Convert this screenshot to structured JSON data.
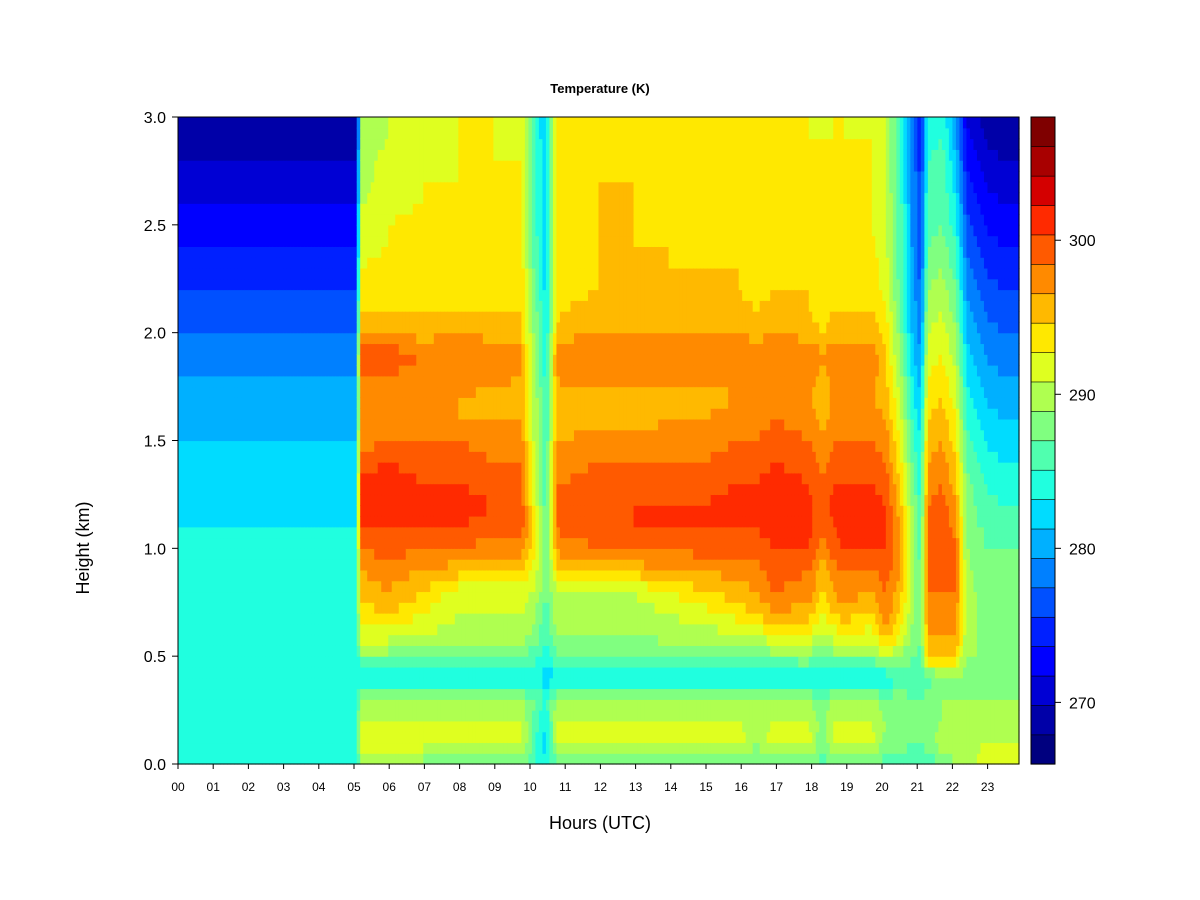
{
  "chart_data": {
    "type": "heatmap",
    "title": "Temperature (K)",
    "xlabel": "Hours (UTC)",
    "ylabel": "Height (km)",
    "x_ticks": [
      "00",
      "01",
      "02",
      "03",
      "04",
      "05",
      "06",
      "07",
      "08",
      "09",
      "10",
      "11",
      "12",
      "13",
      "14",
      "15",
      "16",
      "17",
      "18",
      "19",
      "20",
      "21",
      "22",
      "23"
    ],
    "y_ticks": [
      "0.0",
      "0.5",
      "1.0",
      "1.5",
      "2.0",
      "2.5",
      "3.0"
    ],
    "xlim": [
      0,
      24
    ],
    "ylim": [
      0,
      3
    ],
    "colorbar": {
      "min": 266,
      "max": 308,
      "step": 2,
      "tick_values": [
        270,
        280,
        290,
        300
      ],
      "tick_labels": [
        "270",
        "280",
        "290",
        "300"
      ],
      "colors": [
        "#00007f",
        "#0000a8",
        "#0000d4",
        "#0000ff",
        "#0020ff",
        "#0050ff",
        "#0080ff",
        "#00b0ff",
        "#00dcff",
        "#20ffdf",
        "#50ffaf",
        "#80ff80",
        "#afff50",
        "#dfff20",
        "#ffe800",
        "#ffb900",
        "#ff8a00",
        "#ff5a00",
        "#ff2a00",
        "#d40000",
        "#a80000",
        "#7f0000"
      ]
    },
    "legend": "right",
    "grid": false,
    "heights_km": [
      0.0,
      0.1,
      0.2,
      0.3,
      0.4,
      0.5,
      0.6,
      0.7,
      0.8,
      0.9,
      1.0,
      1.1,
      1.2,
      1.3,
      1.4,
      1.5,
      1.6,
      1.7,
      1.8,
      1.9,
      2.0,
      2.1,
      2.2,
      2.3,
      2.4,
      2.5,
      2.6,
      2.7,
      2.8,
      2.9,
      3.0
    ],
    "profile_hours": [
      0,
      5.1,
      5.2,
      6,
      7,
      8,
      9,
      9.8,
      10.2,
      10.5,
      10.8,
      11,
      12,
      13,
      14,
      15,
      16,
      16.5,
      17,
      18,
      18.4,
      18.7,
      19,
      19.8,
      20.2,
      20.6,
      21,
      21.2,
      21.4,
      21.8,
      22.2,
      22.5,
      22.8,
      23,
      23.5,
      23.85
    ],
    "temperature_profiles_K": [
      [
        285,
        286,
        285,
        285,
        284,
        284,
        285,
        285,
        285,
        284,
        284,
        284,
        283,
        283,
        282,
        282,
        281,
        281,
        280,
        279,
        278,
        277,
        276,
        275,
        274,
        273,
        272,
        271,
        270,
        269,
        268
      ],
      [
        285,
        286,
        285,
        285,
        284,
        284,
        285,
        285,
        285,
        284,
        284,
        284,
        283,
        283,
        282,
        282,
        281,
        281,
        280,
        279,
        278,
        277,
        276,
        275,
        274,
        273,
        272,
        271,
        270,
        269,
        268
      ],
      [
        289,
        293,
        292,
        290,
        283,
        289,
        293,
        295,
        297,
        298,
        300,
        302,
        303,
        303,
        301,
        299,
        298,
        298,
        300,
        301,
        298,
        296,
        295,
        294,
        293,
        292,
        292,
        291,
        291,
        290,
        290
      ],
      [
        289,
        293,
        292,
        290,
        283,
        289,
        293,
        296,
        298,
        299,
        301,
        302,
        303,
        303,
        302,
        300,
        298,
        298,
        300,
        301,
        298,
        296,
        295,
        295,
        294,
        294,
        293,
        293,
        293,
        292,
        292
      ],
      [
        289,
        293,
        292,
        290,
        283,
        289,
        292,
        294,
        296,
        298,
        300,
        302,
        303,
        302,
        301,
        300,
        298,
        298,
        299,
        300,
        297,
        296,
        295,
        295,
        295,
        295,
        294,
        294,
        293,
        293,
        293
      ],
      [
        288,
        293,
        292,
        290,
        283,
        288,
        291,
        292,
        293,
        297,
        300,
        302,
        303,
        302,
        301,
        300,
        298,
        298,
        300,
        300,
        298,
        296,
        295,
        295,
        295,
        295,
        295,
        294,
        294,
        294,
        294
      ],
      [
        288,
        293,
        292,
        290,
        283,
        288,
        291,
        292,
        293,
        296,
        299,
        301,
        302,
        301,
        300,
        299,
        298,
        297,
        299,
        300,
        297,
        296,
        295,
        295,
        295,
        295,
        295,
        295,
        294,
        294,
        294
      ],
      [
        288,
        293,
        292,
        290,
        283,
        288,
        291,
        292,
        293,
        296,
        299,
        301,
        301,
        300,
        300,
        299,
        298,
        297,
        298,
        299,
        296,
        296,
        295,
        295,
        294,
        294,
        294,
        294,
        294,
        293,
        293
      ],
      [
        286,
        286,
        287,
        288,
        284,
        287,
        289,
        290,
        292,
        293,
        294,
        294,
        293,
        292,
        292,
        291,
        291,
        291,
        290,
        290,
        289,
        289,
        288,
        287,
        287,
        286,
        286,
        286,
        286,
        286,
        285
      ],
      [
        284,
        283,
        284,
        286,
        283,
        285,
        286,
        287,
        288,
        288,
        288,
        288,
        287,
        287,
        287,
        286,
        286,
        286,
        285,
        285,
        284,
        284,
        283,
        283,
        283,
        282,
        282,
        282,
        282,
        282,
        282
      ],
      [
        287,
        292,
        292,
        290,
        283,
        288,
        290,
        291,
        292,
        295,
        298,
        300,
        300,
        300,
        299,
        298,
        297,
        296,
        298,
        299,
        296,
        295,
        295,
        295,
        295,
        295,
        295,
        295,
        295,
        295,
        295
      ],
      [
        288,
        293,
        292,
        290,
        283,
        288,
        290,
        291,
        292,
        296,
        299,
        301,
        301,
        300,
        299,
        298,
        297,
        296,
        299,
        300,
        297,
        296,
        295,
        295,
        295,
        295,
        295,
        295,
        295,
        295,
        295
      ],
      [
        288,
        293,
        292,
        290,
        283,
        288,
        290,
        291,
        292,
        297,
        300,
        301,
        302,
        301,
        300,
        299,
        297,
        296,
        299,
        300,
        298,
        297,
        296,
        296,
        296,
        296,
        296,
        296,
        296,
        295,
        295
      ],
      [
        288,
        293,
        292,
        290,
        283,
        288,
        290,
        291,
        292,
        297,
        300,
        302,
        302,
        301,
        300,
        299,
        297,
        296,
        299,
        300,
        298,
        297,
        296,
        296,
        296,
        296,
        296,
        296,
        295,
        295,
        295
      ],
      [
        288,
        293,
        292,
        290,
        283,
        288,
        291,
        292,
        294,
        298,
        300,
        302,
        302,
        301,
        300,
        299,
        298,
        297,
        299,
        300,
        298,
        297,
        296,
        296,
        296,
        295,
        295,
        295,
        295,
        295,
        295
      ],
      [
        288,
        293,
        292,
        290,
        283,
        288,
        291,
        293,
        296,
        298,
        301,
        302,
        302,
        301,
        300,
        299,
        298,
        297,
        299,
        300,
        298,
        297,
        296,
        296,
        295,
        295,
        295,
        295,
        295,
        295,
        294
      ],
      [
        288,
        293,
        292,
        290,
        283,
        289,
        292,
        295,
        297,
        299,
        301,
        302,
        303,
        302,
        301,
        300,
        299,
        298,
        299,
        300,
        298,
        297,
        296,
        296,
        295,
        295,
        295,
        295,
        295,
        294,
        294
      ],
      [
        288,
        290,
        291,
        290,
        283,
        288,
        292,
        296,
        298,
        299,
        301,
        302,
        303,
        302,
        301,
        300,
        299,
        298,
        299,
        300,
        297,
        296,
        295,
        295,
        295,
        295,
        295,
        294,
        294,
        294,
        294
      ],
      [
        288,
        293,
        292,
        290,
        283,
        289,
        294,
        298,
        300,
        301,
        302,
        303,
        304,
        303,
        302,
        301,
        300,
        299,
        300,
        300,
        298,
        297,
        296,
        296,
        295,
        295,
        295,
        295,
        295,
        295,
        294
      ],
      [
        288,
        293,
        292,
        290,
        283,
        290,
        294,
        297,
        299,
        300,
        302,
        303,
        303,
        302,
        301,
        300,
        299,
        298,
        299,
        300,
        297,
        296,
        296,
        295,
        295,
        295,
        295,
        295,
        295,
        294,
        294
      ],
      [
        287,
        288,
        289,
        289,
        283,
        287,
        291,
        294,
        296,
        297,
        299,
        300,
        300,
        300,
        299,
        298,
        297,
        297,
        297,
        298,
        296,
        295,
        295,
        295,
        295,
        294,
        294,
        294,
        294,
        294,
        293
      ],
      [
        288,
        292,
        292,
        290,
        283,
        289,
        293,
        296,
        298,
        299,
        301,
        302,
        303,
        302,
        301,
        300,
        299,
        298,
        299,
        300,
        297,
        296,
        295,
        295,
        295,
        295,
        295,
        295,
        295,
        294,
        294
      ],
      [
        288,
        293,
        292,
        290,
        283,
        289,
        294,
        297,
        299,
        300,
        302,
        303,
        303,
        302,
        301,
        300,
        299,
        298,
        299,
        300,
        297,
        296,
        296,
        295,
        295,
        295,
        295,
        295,
        294,
        294,
        294
      ],
      [
        288,
        293,
        292,
        290,
        283,
        289,
        293,
        296,
        298,
        300,
        302,
        302,
        303,
        302,
        301,
        300,
        299,
        298,
        299,
        300,
        297,
        296,
        295,
        295,
        295,
        294,
        294,
        294,
        294,
        294,
        293
      ],
      [
        287,
        289,
        290,
        289,
        284,
        292,
        297,
        299,
        300,
        301,
        302,
        302,
        302,
        301,
        300,
        299,
        298,
        297,
        296,
        296,
        295,
        294,
        293,
        293,
        292,
        292,
        292,
        292,
        292,
        292,
        292
      ],
      [
        287,
        289,
        289,
        289,
        286,
        290,
        294,
        296,
        297,
        298,
        298,
        298,
        297,
        296,
        295,
        294,
        293,
        292,
        291,
        290,
        289,
        288,
        288,
        287,
        287,
        287,
        287,
        286,
        286,
        286,
        286
      ],
      [
        286,
        288,
        288,
        288,
        287,
        288,
        289,
        290,
        290,
        290,
        290,
        289,
        289,
        288,
        287,
        286,
        285,
        284,
        283,
        282,
        281,
        281,
        280,
        280,
        279,
        279,
        279,
        279,
        278,
        278,
        278
      ],
      [
        286,
        288,
        288,
        288,
        287,
        287,
        288,
        288,
        288,
        288,
        287,
        287,
        286,
        285,
        285,
        284,
        283,
        282,
        281,
        280,
        279,
        278,
        278,
        277,
        277,
        276,
        276,
        276,
        275,
        275,
        275
      ],
      [
        287,
        289,
        289,
        289,
        287,
        297,
        298,
        299,
        300,
        301,
        301,
        301,
        300,
        299,
        298,
        297,
        296,
        295,
        294,
        293,
        292,
        291,
        290,
        289,
        288,
        287,
        287,
        286,
        286,
        285,
        285
      ],
      [
        288,
        291,
        290,
        290,
        289,
        296,
        298,
        299,
        300,
        301,
        302,
        302,
        301,
        300,
        299,
        298,
        297,
        296,
        295,
        294,
        293,
        292,
        291,
        290,
        289,
        288,
        288,
        287,
        287,
        286,
        286
      ],
      [
        290,
        291,
        290,
        290,
        289,
        296,
        298,
        299,
        300,
        300,
        300,
        299,
        298,
        297,
        296,
        295,
        294,
        293,
        292,
        291,
        290,
        289,
        288,
        287,
        286,
        285,
        284,
        283,
        282,
        281,
        280
      ],
      [
        291,
        291,
        290,
        290,
        289,
        290,
        291,
        291,
        291,
        291,
        290,
        290,
        289,
        289,
        288,
        287,
        286,
        285,
        284,
        283,
        282,
        281,
        280,
        279,
        278,
        277,
        276,
        275,
        274,
        273,
        272
      ],
      [
        292,
        291,
        290,
        290,
        289,
        290,
        290,
        290,
        290,
        289,
        289,
        288,
        288,
        287,
        286,
        285,
        284,
        283,
        282,
        281,
        280,
        279,
        278,
        277,
        276,
        275,
        274,
        273,
        272,
        271,
        270
      ],
      [
        293,
        292,
        291,
        290,
        289,
        289,
        289,
        289,
        289,
        289,
        288,
        288,
        287,
        286,
        285,
        284,
        283,
        282,
        281,
        280,
        279,
        278,
        277,
        276,
        275,
        274,
        273,
        272,
        271,
        270,
        269
      ],
      [
        293,
        292,
        291,
        290,
        289,
        289,
        289,
        289,
        288,
        288,
        288,
        287,
        286,
        285,
        284,
        283,
        282,
        281,
        280,
        279,
        278,
        277,
        276,
        275,
        274,
        273,
        272,
        271,
        270,
        269,
        269
      ],
      [
        293,
        292,
        291,
        290,
        289,
        289,
        289,
        289,
        288,
        288,
        288,
        287,
        286,
        285,
        284,
        283,
        282,
        281,
        280,
        279,
        278,
        277,
        276,
        275,
        274,
        273,
        272,
        271,
        270,
        269,
        269
      ]
    ]
  }
}
